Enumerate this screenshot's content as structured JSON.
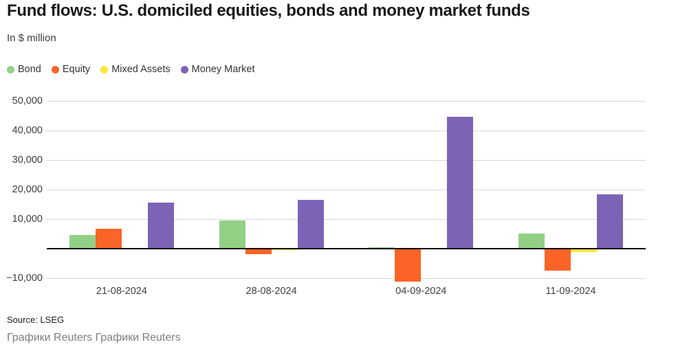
{
  "header": {
    "title": "Fund flows: U.S. domiciled equities, bonds and money market funds",
    "subtitle": "In $ million"
  },
  "chart_data": {
    "type": "bar",
    "title": "Fund flows: U.S. domiciled equities, bonds and money market funds",
    "subtitle": "In $ million",
    "ylabel": "In $ million",
    "xlabel": "",
    "categories": [
      "21-08-2024",
      "28-08-2024",
      "04-09-2024",
      "11-09-2024"
    ],
    "series": [
      {
        "name": "Bond",
        "color": "#92d086",
        "values": [
          4600,
          9500,
          400,
          5000
        ]
      },
      {
        "name": "Equity",
        "color": "#fa6427",
        "values": [
          6700,
          -1900,
          -11200,
          -7600
        ]
      },
      {
        "name": "Mixed Assets",
        "color": "#ffe53d",
        "values": [
          -300,
          -600,
          -400,
          -1200
        ]
      },
      {
        "name": "Money Market",
        "color": "#7c63b6",
        "values": [
          15400,
          16400,
          44600,
          18200
        ]
      }
    ],
    "y_ticks": [
      {
        "value": 50000,
        "label": "50,000"
      },
      {
        "value": 40000,
        "label": "40,000"
      },
      {
        "value": 30000,
        "label": "30,000"
      },
      {
        "value": 20000,
        "label": "20,000"
      },
      {
        "value": 10000,
        "label": "10,000"
      },
      {
        "value": -10000,
        "label": "−10,000"
      }
    ],
    "ylim": [
      -13000,
      52000
    ],
    "baseline": 0,
    "grid": true,
    "legend_position": "top-left"
  },
  "footer": {
    "source": "Source: LSEG",
    "attribution": "Графики Reuters Графики Reuters"
  }
}
